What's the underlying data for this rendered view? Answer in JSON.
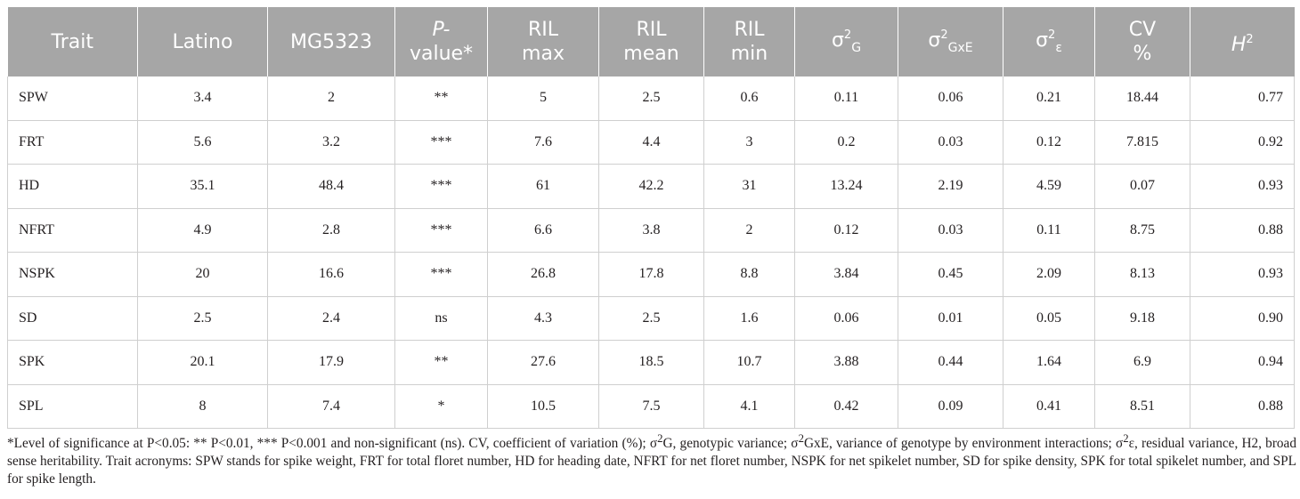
{
  "table": {
    "headers": [
      {
        "text": "Trait"
      },
      {
        "text": "Latino"
      },
      {
        "text": "MG5323"
      },
      {
        "text": "P-",
        "line2": "value*",
        "italic_first": true
      },
      {
        "text": "RIL",
        "line2": "max"
      },
      {
        "text": "RIL",
        "line2": "mean"
      },
      {
        "text": "RIL",
        "line2": "min"
      },
      {
        "base": "σ",
        "sup": "2",
        "sub": "G"
      },
      {
        "base": "σ",
        "sup": "2",
        "sub": "GxE"
      },
      {
        "base": "σ",
        "sup": "2",
        "sub": "ε"
      },
      {
        "text": "CV",
        "line2": "%"
      },
      {
        "base": "H",
        "sup": "2",
        "italic_base": true
      }
    ],
    "rows": [
      [
        "SPW",
        "3.4",
        "2",
        "**",
        "5",
        "2.5",
        "0.6",
        "0.11",
        "0.06",
        "0.21",
        "18.44",
        "0.77"
      ],
      [
        "FRT",
        "5.6",
        "3.2",
        "***",
        "7.6",
        "4.4",
        "3",
        "0.2",
        "0.03",
        "0.12",
        "7.815",
        "0.92"
      ],
      [
        "HD",
        "35.1",
        "48.4",
        "***",
        "61",
        "42.2",
        "31",
        "13.24",
        "2.19",
        "4.59",
        "0.07",
        "0.93"
      ],
      [
        "NFRT",
        "4.9",
        "2.8",
        "***",
        "6.6",
        "3.8",
        "2",
        "0.12",
        "0.03",
        "0.11",
        "8.75",
        "0.88"
      ],
      [
        "NSPK",
        "20",
        "16.6",
        "***",
        "26.8",
        "17.8",
        "8.8",
        "3.84",
        "0.45",
        "2.09",
        "8.13",
        "0.93"
      ],
      [
        "SD",
        "2.5",
        "2.4",
        "ns",
        "4.3",
        "2.5",
        "1.6",
        "0.06",
        "0.01",
        "0.05",
        "9.18",
        "0.90"
      ],
      [
        "SPK",
        "20.1",
        "17.9",
        "**",
        "27.6",
        "18.5",
        "10.7",
        "3.88",
        "0.44",
        "1.64",
        "6.9",
        "0.94"
      ],
      [
        "SPL",
        "8",
        "7.4",
        "*",
        "10.5",
        "7.5",
        "4.1",
        "0.42",
        "0.09",
        "0.41",
        "8.51",
        "0.88"
      ]
    ]
  },
  "footnote": {
    "p1": "*Level of significance at P<0.05: ** P<0.01, *** P<0.001 and non-significant (ns). CV, coefficient of variation (%); σ",
    "sup1": "2",
    "p2": "G, genotypic variance; σ",
    "sup2": "2",
    "p3": "GxE, variance of genotype by environment interactions; σ",
    "sup3": "2",
    "p4": "ε, residual variance, H2, broad sense heritability. Trait acronyms: SPW stands for spike weight, FRT for total floret number, HD for heading date, NFRT for net floret number, NSPK for net spikelet number, SD for spike density, SPK for total spikelet number, and SPL for spike length."
  },
  "colors": {
    "header_bg": "#a6a6a6",
    "header_text": "#ffffff",
    "grid": "#cfcfcf",
    "body_text": "#231f20"
  }
}
